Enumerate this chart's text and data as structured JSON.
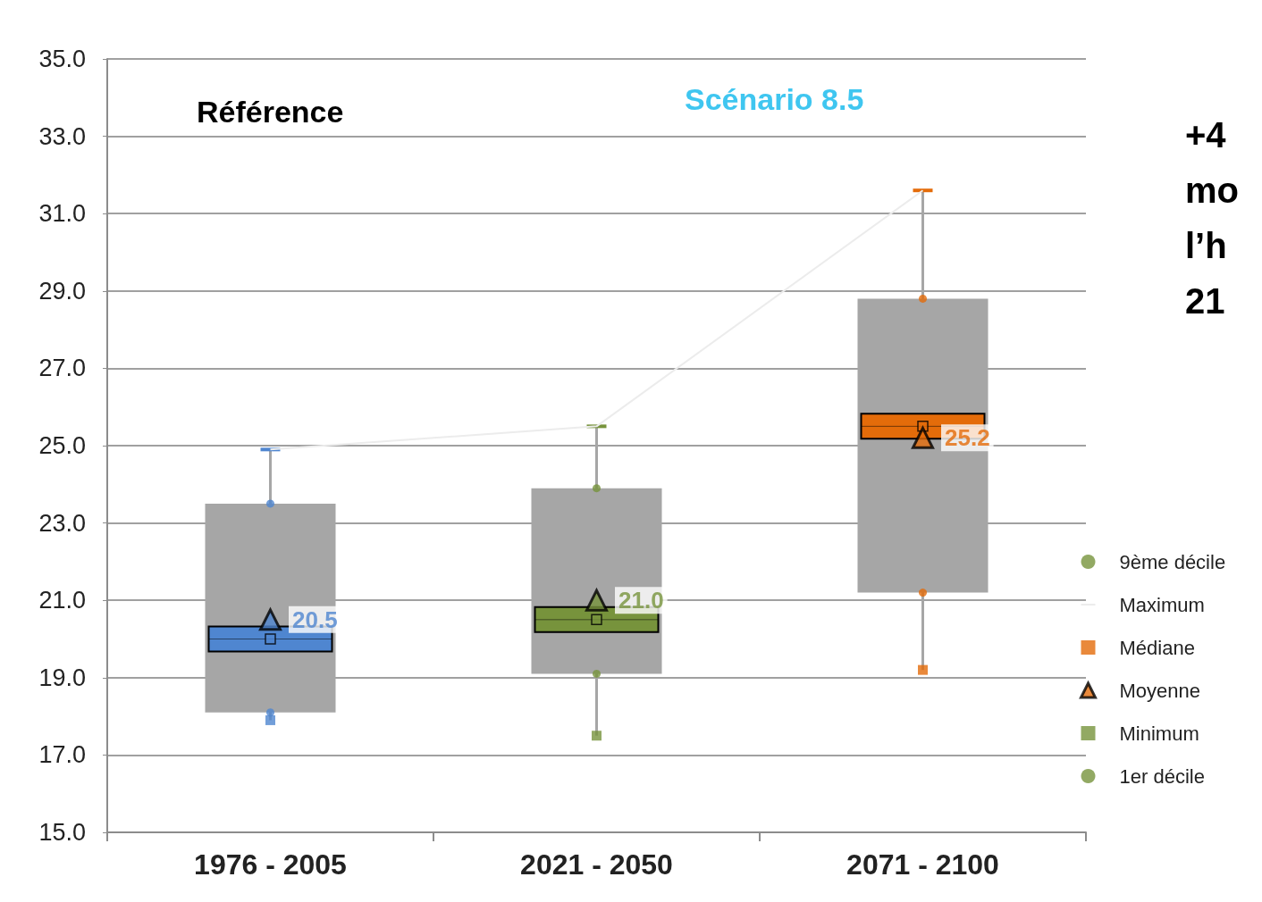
{
  "chart_data": {
    "type": "box",
    "categories": [
      "1976 - 2005",
      "2021 - 2050",
      "2071 - 2100"
    ],
    "color": "#a6a6a6",
    "boxes": [
      {
        "low": 17.9,
        "q1": 18.1,
        "median": 20.0,
        "q3": 23.5,
        "high": 24.9
      },
      {
        "low": 17.5,
        "q1": 19.1,
        "median": 20.5,
        "q3": 23.9,
        "high": 25.5
      },
      {
        "low": 19.2,
        "q1": 21.2,
        "median": 25.5,
        "q3": 28.8,
        "high": 31.6
      }
    ],
    "series": [
      {
        "name": "9ème décile",
        "type": "scatter",
        "marker": "circle",
        "color": "#77933c",
        "colors": [
          "#4f86d0",
          "#77933c",
          "#e46c0a"
        ],
        "values": [
          23.5,
          23.9,
          28.8
        ]
      },
      {
        "name": "Maximum",
        "type": "line",
        "marker": "none",
        "color": "#ececec",
        "values": [
          24.9,
          25.5,
          31.6
        ]
      },
      {
        "name": "Médiane",
        "type": "scatter",
        "marker": "square",
        "color": "#e46c0a",
        "colors": [
          "#4f86d0",
          "#77933c",
          "#e46c0a"
        ],
        "values": [
          20.0,
          20.5,
          25.5
        ]
      },
      {
        "name": "Moyenne",
        "type": "scatter",
        "marker": "triangle",
        "color": "#e46c0a",
        "colors": [
          "#4f86d0",
          "#77933c",
          "#e46c0a"
        ],
        "values": [
          20.5,
          21.0,
          25.2
        ],
        "value_labels": [
          "20.5",
          "21.0",
          "25.2"
        ]
      },
      {
        "name": "Minimum",
        "type": "scatter",
        "marker": "square",
        "color": "#77933c",
        "colors": [
          "#4f86d0",
          "#77933c",
          "#e46c0a"
        ],
        "values": [
          17.9,
          17.5,
          19.2
        ]
      },
      {
        "name": "1er décile",
        "type": "scatter",
        "marker": "circle",
        "color": "#77933c",
        "colors": [
          "#4f86d0",
          "#77933c",
          "#e46c0a"
        ],
        "values": [
          18.1,
          19.1,
          21.2
        ]
      }
    ],
    "ylim": [
      15,
      35
    ],
    "yticks": [
      {
        "value": 15,
        "label": "15.0"
      },
      {
        "value": 17,
        "label": "17.0"
      },
      {
        "value": 19,
        "label": "19.0"
      },
      {
        "value": 21,
        "label": "21.0"
      },
      {
        "value": 23,
        "label": "23.0"
      },
      {
        "value": 25,
        "label": "25.0"
      },
      {
        "value": 27,
        "label": "27.0"
      },
      {
        "value": 29,
        "label": "29.0"
      },
      {
        "value": 31,
        "label": "31.0"
      },
      {
        "value": 33,
        "label": "33.0"
      },
      {
        "value": 35,
        "label": "35.0"
      }
    ],
    "grid": "y",
    "legend": "right",
    "annotations": [
      "Référence",
      "Scénario 8.5",
      "+4\nmo\nl’h\n21"
    ]
  }
}
